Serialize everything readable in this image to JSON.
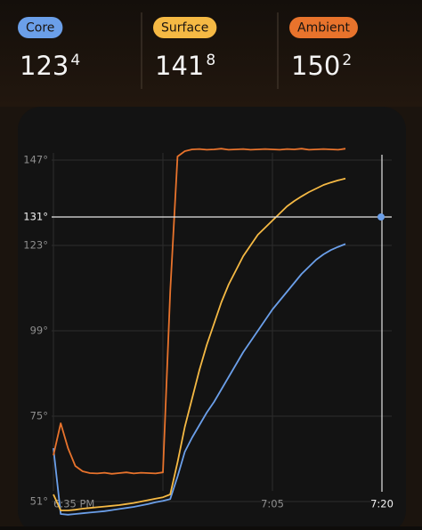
{
  "chart_data": {
    "type": "line",
    "x": [
      "18:35",
      "18:36",
      "18:37",
      "18:38",
      "18:39",
      "18:40",
      "18:41",
      "18:42",
      "18:43",
      "18:44",
      "18:45",
      "18:46",
      "18:47",
      "18:48",
      "18:49",
      "18:50",
      "18:51",
      "18:52",
      "18:53",
      "18:54",
      "18:55",
      "18:56",
      "18:57",
      "18:58",
      "18:59",
      "19:00",
      "19:01",
      "19:02",
      "19:03",
      "19:04",
      "19:05",
      "19:06",
      "19:07",
      "19:08",
      "19:09",
      "19:10",
      "19:11",
      "19:12",
      "19:13",
      "19:14",
      "19:15"
    ],
    "series": [
      {
        "name": "Core",
        "color": "#6b9fe9",
        "current": "123",
        "current_decimal": "4",
        "values": [
          66,
          47.5,
          47.3,
          47.5,
          47.7,
          47.9,
          48.1,
          48.3,
          48.6,
          48.9,
          49.2,
          49.5,
          49.9,
          50.3,
          50.8,
          51.2,
          51.7,
          58,
          65,
          69,
          72.5,
          76,
          79,
          82.5,
          86,
          89.5,
          93,
          96,
          99,
          102,
          105,
          107.5,
          110,
          112.5,
          115,
          117,
          119,
          120.5,
          121.7,
          122.6,
          123.4
        ]
      },
      {
        "name": "Surface",
        "color": "#f5b944",
        "current": "141",
        "current_decimal": "8",
        "values": [
          53,
          48.5,
          48.5,
          48.7,
          49,
          49.2,
          49.4,
          49.6,
          49.8,
          50,
          50.3,
          50.6,
          51,
          51.4,
          51.8,
          52.2,
          53,
          62,
          72,
          80,
          88,
          95,
          101,
          107,
          112,
          116,
          120,
          123,
          126,
          128,
          130,
          132,
          134,
          135.5,
          136.8,
          138,
          139,
          140,
          140.7,
          141.3,
          141.8
        ]
      },
      {
        "name": "Ambient",
        "color": "#e8732c",
        "current": "150",
        "current_decimal": "2",
        "values": [
          64,
          73,
          66,
          61,
          59.5,
          59,
          58.9,
          59.1,
          58.8,
          59,
          59.2,
          58.9,
          59.1,
          59,
          58.9,
          59.2,
          110,
          148,
          149.5,
          150,
          150.1,
          149.9,
          150,
          150.2,
          149.9,
          150,
          150.1,
          149.9,
          150,
          150.1,
          150,
          149.9,
          150.1,
          150,
          150.2,
          149.9,
          150,
          150.1,
          150,
          149.9,
          150.2
        ]
      }
    ],
    "ylim": [
      44,
      162
    ],
    "yticks": [
      {
        "value": 51,
        "label": "51°"
      },
      {
        "value": 75,
        "label": "75°"
      },
      {
        "value": 99,
        "label": "99°"
      },
      {
        "value": 123,
        "label": "123°"
      },
      {
        "value": 147,
        "label": "147°"
      }
    ],
    "xlim": [
      "18:35",
      "19:20"
    ],
    "xticks": [
      {
        "value": "18:35",
        "label": "6:35 PM"
      },
      {
        "value": "18:50",
        "label": null
      },
      {
        "value": "19:05",
        "label": "7:05"
      }
    ],
    "grid": true,
    "crosshair": {
      "x": "19:20",
      "x_label": "7:20",
      "y": 131,
      "y_label": "131°",
      "color": "#6b9fe9"
    }
  }
}
